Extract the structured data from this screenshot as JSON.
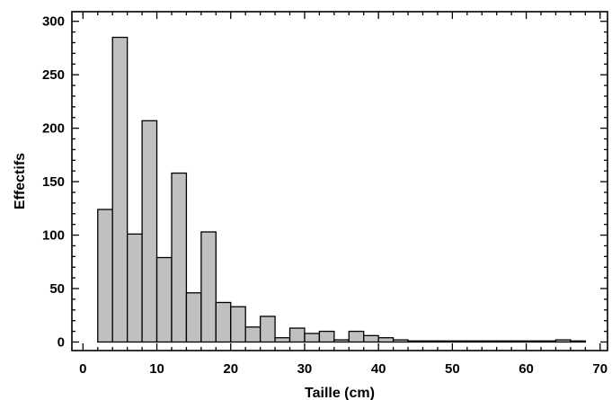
{
  "chart_data": {
    "type": "bar",
    "subtype": "histogram",
    "title": "",
    "xlabel": "Taille (cm)",
    "ylabel": "Effectifs",
    "xlim": [
      -1.5,
      71
    ],
    "ylim": [
      -8,
      309
    ],
    "x_ticks": [
      0,
      10,
      20,
      30,
      40,
      50,
      60,
      70
    ],
    "y_ticks": [
      0,
      50,
      100,
      150,
      200,
      250,
      300
    ],
    "bin_width": 2,
    "bin_starts": [
      2,
      4,
      6,
      8,
      10,
      12,
      14,
      16,
      18,
      20,
      22,
      24,
      26,
      28,
      30,
      32,
      34,
      36,
      38,
      40,
      42,
      44,
      46,
      48,
      50,
      52,
      54,
      56,
      58,
      60,
      62,
      64,
      66
    ],
    "values": [
      124,
      285,
      101,
      207,
      79,
      158,
      46,
      103,
      37,
      33,
      14,
      24,
      4,
      13,
      8,
      10,
      2,
      10,
      6,
      4,
      2,
      1,
      1,
      1,
      1,
      1,
      1,
      1,
      1,
      1,
      1,
      2,
      1
    ],
    "grid": false,
    "legend": "none",
    "colors": {
      "bar_fill": "#c0c0c0",
      "bar_stroke": "#000000",
      "background": "#ffffff"
    }
  }
}
